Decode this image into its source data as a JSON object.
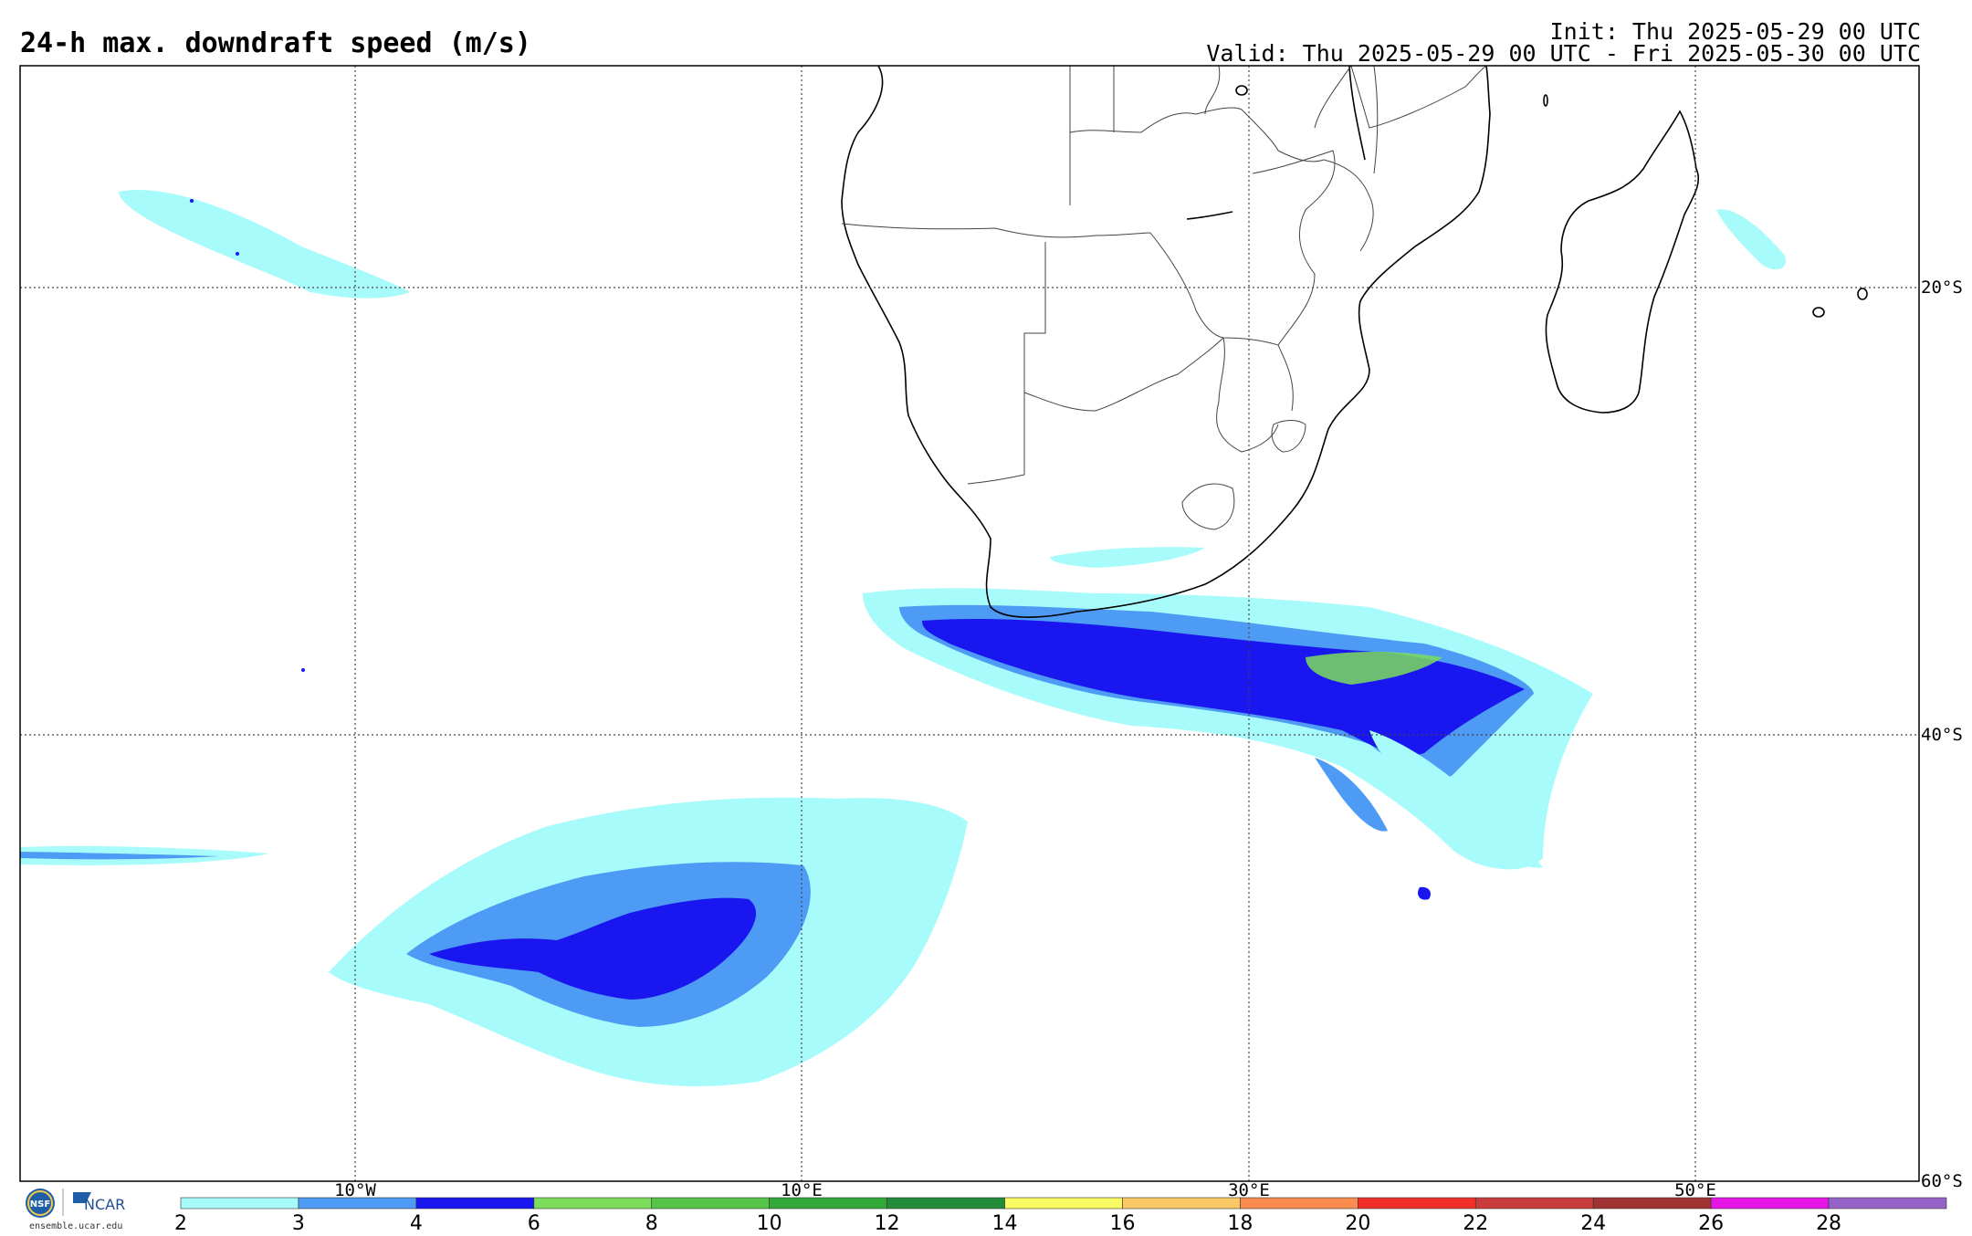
{
  "header": {
    "title": "24-h max. downdraft speed (m/s)",
    "init": "Init: Thu 2025-05-29 00 UTC",
    "valid": "Valid: Thu 2025-05-29 00 UTC - Fri 2025-05-30 00 UTC"
  },
  "map": {
    "lon_labels": [
      "10°W",
      "10°E",
      "30°E",
      "50°E"
    ],
    "lat_labels": [
      "20°S",
      "40°S",
      "60°S"
    ],
    "gridlines": "dotted"
  },
  "colorbar": {
    "ticks": [
      "2",
      "3",
      "4",
      "6",
      "8",
      "10",
      "12",
      "14",
      "16",
      "18",
      "20",
      "22",
      "24",
      "26",
      "28"
    ],
    "colors": [
      "#a8fbfb",
      "#4d9bf4",
      "#1a16f0",
      "#7cdc5c",
      "#55c448",
      "#32a838",
      "#228c38",
      "#fafa64",
      "#fac864",
      "#fa8c50",
      "#f03028",
      "#c83c3c",
      "#a03232",
      "#e614e6",
      "#9664c8"
    ]
  },
  "footer": {
    "logo_nsf": "NSF",
    "logo_ncar": "NCAR",
    "site": "ensemble.ucar.edu"
  }
}
